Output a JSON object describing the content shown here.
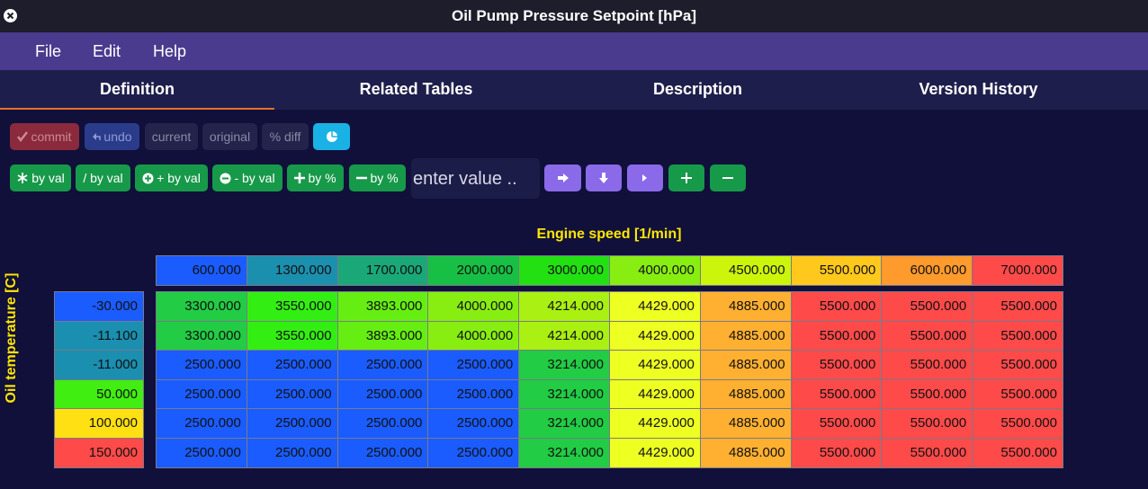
{
  "title": "Oil Pump Pressure Setpoint [hPa]",
  "menu": [
    "File",
    "Edit",
    "Help"
  ],
  "tabs": [
    "Definition",
    "Related Tables",
    "Description",
    "Version History"
  ],
  "toolbar1": [
    "commit",
    "undo",
    "current",
    "original",
    "% diff"
  ],
  "toolbar2": [
    "by val",
    "/ by val",
    "+ by val",
    "- by val",
    "by %",
    "by %"
  ],
  "input_placeholder": "enter value ..",
  "table": {
    "x_label": "Engine speed [1/min]",
    "y_label": "Oil temperature [C]",
    "columns": [
      "600.000",
      "1300.000",
      "1700.000",
      "2000.000",
      "3000.000",
      "4000.000",
      "4500.000",
      "5500.000",
      "6000.000",
      "7000.000"
    ],
    "column_colors": [
      "#1a5cff",
      "#1b8fae",
      "#1aa878",
      "#17c044",
      "#22e012",
      "#88ee12",
      "#ccf50c",
      "#ffc81c",
      "#ff9a2c",
      "#ff4a4a"
    ],
    "rows": [
      {
        "label": "-30.000",
        "color": "#1a5cff",
        "cells": [
          "3300.000",
          "3550.000",
          "3893.000",
          "4000.000",
          "4214.000",
          "4429.000",
          "4885.000",
          "5500.000",
          "5500.000",
          "5500.000"
        ],
        "cell_colors": [
          "#22cc44",
          "#33ee12",
          "#66ee12",
          "#88ee12",
          "#aaf012",
          "#eeff22",
          "#ffb030",
          "#ff4a4a",
          "#ff4a4a",
          "#ff4a4a"
        ]
      },
      {
        "label": "-11.100",
        "color": "#1a8fb0",
        "cells": [
          "3300.000",
          "3550.000",
          "3893.000",
          "4000.000",
          "4214.000",
          "4429.000",
          "4885.000",
          "5500.000",
          "5500.000",
          "5500.000"
        ],
        "cell_colors": [
          "#22cc44",
          "#33ee12",
          "#66ee12",
          "#88ee12",
          "#aaf012",
          "#eeff22",
          "#ffb030",
          "#ff4a4a",
          "#ff4a4a",
          "#ff4a4a"
        ]
      },
      {
        "label": "-11.000",
        "color": "#1a8fb0",
        "cells": [
          "2500.000",
          "2500.000",
          "2500.000",
          "2500.000",
          "3214.000",
          "4429.000",
          "4885.000",
          "5500.000",
          "5500.000",
          "5500.000"
        ],
        "cell_colors": [
          "#1a5cff",
          "#1a5cff",
          "#1a5cff",
          "#1a5cff",
          "#22cc44",
          "#eeff22",
          "#ffb030",
          "#ff4a4a",
          "#ff4a4a",
          "#ff4a4a"
        ]
      },
      {
        "label": "50.000",
        "color": "#40ee12",
        "cells": [
          "2500.000",
          "2500.000",
          "2500.000",
          "2500.000",
          "3214.000",
          "4429.000",
          "4885.000",
          "5500.000",
          "5500.000",
          "5500.000"
        ],
        "cell_colors": [
          "#1a5cff",
          "#1a5cff",
          "#1a5cff",
          "#1a5cff",
          "#22cc44",
          "#eeff22",
          "#ffb030",
          "#ff4a4a",
          "#ff4a4a",
          "#ff4a4a"
        ]
      },
      {
        "label": "100.000",
        "color": "#ffe012",
        "cells": [
          "2500.000",
          "2500.000",
          "2500.000",
          "2500.000",
          "3214.000",
          "4429.000",
          "4885.000",
          "5500.000",
          "5500.000",
          "5500.000"
        ],
        "cell_colors": [
          "#1a5cff",
          "#1a5cff",
          "#1a5cff",
          "#1a5cff",
          "#22cc44",
          "#eeff22",
          "#ffb030",
          "#ff4a4a",
          "#ff4a4a",
          "#ff4a4a"
        ]
      },
      {
        "label": "150.000",
        "color": "#ff4a4a",
        "cells": [
          "2500.000",
          "2500.000",
          "2500.000",
          "2500.000",
          "3214.000",
          "4429.000",
          "4885.000",
          "5500.000",
          "5500.000",
          "5500.000"
        ],
        "cell_colors": [
          "#1a5cff",
          "#1a5cff",
          "#1a5cff",
          "#1a5cff",
          "#22cc44",
          "#eeff22",
          "#ffb030",
          "#ff4a4a",
          "#ff4a4a",
          "#ff4a4a"
        ]
      }
    ]
  }
}
